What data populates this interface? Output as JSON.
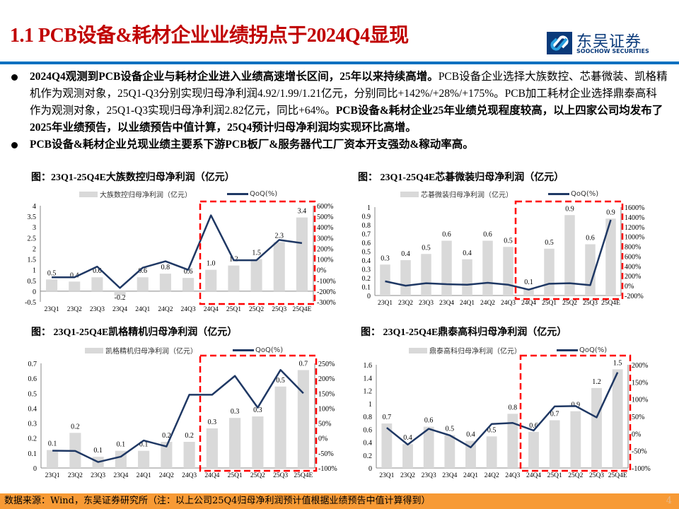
{
  "header": {
    "title": "1.1 PCB设备&耗材企业业绩拐点于2024Q4显现",
    "logo_cn": "东吴证券",
    "logo_en": "SOOCHOW SECURITIES"
  },
  "bullets": [
    {
      "bold1": "2024Q4观测到PCB设备企业与耗材企业进入业绩高速增长区间，25年以来持续高增。",
      "normal": "PCB设备企业选择大族数控、芯碁微装、凯格精机作为观测对象，25Q1-Q3分别实现归母净利润4.92/1.99/1.21亿元，分别同比+142%/+28%/+175%。PCB加工耗材企业选择鼎泰高科作为观测对象，25Q1-Q3实现归母净利润2.82亿元，同比+64%。",
      "bold2": "PCB设备&耗材企业25年业绩兑现程度较高，以上四家公司均发布了2025年业绩预告，以业绩预告中值计算，25Q4预计归母净利润均实现环比高增。"
    },
    {
      "bold1": "PCB设备&耗材企业兑现业绩主要系下游PCB板厂&服务器代工厂资本开支强劲&稼动率高。",
      "normal": "",
      "bold2": ""
    }
  ],
  "chart_data": [
    {
      "type": "bar+line",
      "title": "图：23Q1-25Q4E大族数控归母净利润（亿元）",
      "bar_series": "大族数控归母净利润（亿元）",
      "line_series": "QoQ(%)",
      "categories": [
        "23Q1",
        "23Q2",
        "23Q3",
        "23Q4",
        "24Q1",
        "24Q2",
        "24Q3",
        "24Q4",
        "25Q1",
        "25Q2",
        "25Q3",
        "25Q4E"
      ],
      "values": [
        0.55,
        0.45,
        0.65,
        -0.2,
        0.65,
        0.82,
        0.62,
        1.0,
        1.2,
        1.5,
        2.3,
        3.45
      ],
      "labels": [
        "0.5",
        "0.4",
        "0.6",
        "-0.2",
        "0.6",
        "0.8",
        "0.6",
        "1.0",
        "1.2",
        "1.5",
        "2.3",
        "3.4"
      ],
      "qoq": [
        -70,
        -70,
        30,
        -170,
        20,
        80,
        0,
        510,
        90,
        90,
        280,
        250
      ],
      "ylim": [
        -0.5,
        4
      ],
      "y2lim": [
        -300,
        600
      ],
      "yticks": [
        "-0.5",
        "0",
        "0.5",
        "1",
        "1.5",
        "2",
        "2.5",
        "3",
        "3.5",
        "4"
      ],
      "y2ticks": [
        "-300%",
        "-200%",
        "-100%",
        "0%",
        "100%",
        "200%",
        "300%",
        "400%",
        "500%",
        "600%"
      ],
      "highlight": [
        "24Q4",
        "25Q4E"
      ]
    },
    {
      "type": "bar+line",
      "title": "图： 23Q1-25Q4E芯碁微装归母净利润（亿元）",
      "bar_series": "芯碁微装归母净利润（亿元）",
      "line_series": "QoQ(%)",
      "categories": [
        "23Q1",
        "23Q2",
        "23Q3",
        "23Q4",
        "24Q1",
        "24Q2",
        "24Q3",
        "24Q4",
        "25Q1",
        "25Q2",
        "25Q3",
        "25Q4E"
      ],
      "values": [
        0.35,
        0.4,
        0.47,
        0.62,
        0.41,
        0.62,
        0.55,
        0.08,
        0.53,
        0.91,
        0.58,
        0.87
      ],
      "labels": [
        "0.3",
        "0.4",
        "0.5",
        "0.6",
        "0.4",
        "0.6",
        "0.5",
        "0.1",
        "0.5",
        "0.9",
        "0.6",
        "0.9"
      ],
      "qoq": [
        90,
        0,
        50,
        30,
        20,
        60,
        20,
        -80,
        40,
        50,
        10,
        1340
      ],
      "ylim": [
        0,
        1
      ],
      "y2lim": [
        -200,
        1600
      ],
      "yticks": [
        "0",
        "0.1",
        "0.2",
        "0.3",
        "0.4",
        "0.5",
        "0.6",
        "0.7",
        "0.8",
        "0.9",
        "1"
      ],
      "y2ticks": [
        "-200%",
        "0%",
        "200%",
        "400%",
        "600%",
        "800%",
        "1000%",
        "1200%",
        "1400%",
        "1600%"
      ],
      "highlight": [
        "24Q4",
        "25Q4E"
      ]
    },
    {
      "type": "bar+line",
      "title": "图： 23Q1-25Q4E凯格精机归母净利润（亿元）",
      "bar_series": "凯格精机归母净利润（亿元）",
      "line_series": "QoQ(%)",
      "categories": [
        "23Q1",
        "23Q2",
        "23Q3",
        "23Q4",
        "24Q1",
        "24Q2",
        "24Q3",
        "24Q4",
        "25Q1",
        "25Q2",
        "25Q3",
        "25Q4E"
      ],
      "values": [
        0.12,
        0.235,
        0.075,
        0.115,
        0.115,
        0.175,
        0.175,
        0.265,
        0.335,
        0.345,
        0.545,
        0.655
      ],
      "labels": [
        "0.1",
        "0.2",
        "0.1",
        "0.1",
        "0.1",
        "0.2",
        "0.2",
        "0.3",
        "0.3",
        "0.3",
        "0.5",
        "0.7"
      ],
      "qoq": [
        -42,
        -43,
        -80,
        -62,
        -8,
        -28,
        145,
        145,
        208,
        102,
        228,
        150
      ],
      "ylim": [
        0,
        0.7
      ],
      "y2lim": [
        -100,
        250
      ],
      "yticks": [
        "0",
        "0.1",
        "0.2",
        "0.3",
        "0.4",
        "0.5",
        "0.6",
        "0.7"
      ],
      "y2ticks": [
        "-100%",
        "-50%",
        "0%",
        "50%",
        "100%",
        "150%",
        "200%",
        "250%"
      ],
      "highlight": [
        "24Q4",
        "25Q4E"
      ]
    },
    {
      "type": "bar+line",
      "title": "图： 23Q1-25Q4E鼎泰高科归母净利润（亿元）",
      "bar_series": "鼎泰高科归母净利润（亿元）",
      "line_series": "QoQ(%)",
      "categories": [
        "23Q1",
        "23Q2",
        "23Q3",
        "23Q4",
        "24Q1",
        "24Q2",
        "24Q3",
        "24Q4",
        "25Q1",
        "25Q2",
        "25Q3",
        "25Q4E"
      ],
      "values": [
        0.69,
        0.37,
        0.64,
        0.51,
        0.42,
        0.49,
        0.84,
        0.56,
        0.74,
        0.88,
        1.24,
        1.53
      ],
      "labels": [
        "0.7",
        "0.4",
        "0.6",
        "0.5",
        "0.4",
        "0.5",
        "0.8",
        "0.6",
        "0.7",
        "0.9",
        "1.2",
        "1.5"
      ],
      "qoq": [
        17,
        -32,
        14,
        -5,
        -40,
        28,
        31,
        9,
        79,
        80,
        47,
        178
      ],
      "ylim": [
        0,
        1.6
      ],
      "y2lim": [
        -100,
        200
      ],
      "yticks": [
        "0",
        "0.2",
        "0.4",
        "0.6",
        "0.8",
        "1",
        "1.2",
        "1.4",
        "1.6"
      ],
      "y2ticks": [
        "-100%",
        "-50%",
        "0%",
        "50%",
        "100%",
        "150%",
        "200%"
      ],
      "highlight": [
        "24Q4",
        "25Q4E"
      ]
    }
  ],
  "colors": {
    "bar": "#d9d9d9",
    "line": "#1f3864",
    "highlight": "#ff0000",
    "title": "#c00000",
    "rule": "#0070c0",
    "footer": "#f79a35"
  },
  "footer": {
    "source": "数据来源：Wind，东吴证券研究所（注：以上公司25Q4归母净利润预计值根据业绩预告中值计算得到）",
    "page": "4"
  }
}
